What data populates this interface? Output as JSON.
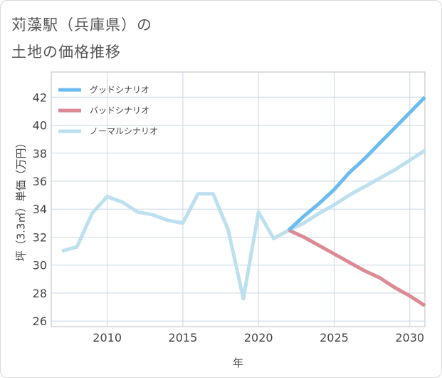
{
  "title": {
    "line1": "苅藻駅（兵庫県）の",
    "line2": "土地の価格推移"
  },
  "chart_data": {
    "type": "line",
    "xlabel": "年",
    "ylabel": "坪（3.3㎡）単価（万円）",
    "xlim": [
      2006.3,
      2031
    ],
    "ylim": [
      25.6,
      43.8
    ],
    "x_ticks": [
      2010,
      2015,
      2020,
      2025,
      2030
    ],
    "y_ticks": [
      26,
      28,
      30,
      32,
      34,
      36,
      38,
      40,
      42
    ],
    "grid": true,
    "legend_position": "top-left",
    "series": [
      {
        "name": "グッドシナリオ",
        "color": "#6cbbef",
        "points": [
          [
            2022,
            32.5
          ],
          [
            2023,
            33.5
          ],
          [
            2024,
            34.4
          ],
          [
            2025,
            35.4
          ],
          [
            2026,
            36.6
          ],
          [
            2027,
            37.6
          ],
          [
            2028,
            38.7
          ],
          [
            2029,
            39.8
          ],
          [
            2030,
            40.9
          ],
          [
            2031,
            42.0
          ]
        ]
      },
      {
        "name": "バッドシナリオ",
        "color": "#dd8a94",
        "points": [
          [
            2022,
            32.5
          ],
          [
            2023,
            32.0
          ],
          [
            2024,
            31.4
          ],
          [
            2025,
            30.8
          ],
          [
            2026,
            30.2
          ],
          [
            2027,
            29.6
          ],
          [
            2028,
            29.1
          ],
          [
            2029,
            28.4
          ],
          [
            2030,
            27.8
          ],
          [
            2031,
            27.1
          ]
        ]
      },
      {
        "name": "ノーマルシナリオ",
        "color": "#bde0ee",
        "points": [
          [
            2007,
            31.0
          ],
          [
            2008,
            31.3
          ],
          [
            2009,
            33.7
          ],
          [
            2010,
            34.9
          ],
          [
            2011,
            34.5
          ],
          [
            2012,
            33.8
          ],
          [
            2013,
            33.6
          ],
          [
            2014,
            33.2
          ],
          [
            2015,
            33.0
          ],
          [
            2016,
            35.1
          ],
          [
            2017,
            35.1
          ],
          [
            2018,
            32.5
          ],
          [
            2019,
            27.6
          ],
          [
            2020,
            33.8
          ],
          [
            2021,
            31.9
          ],
          [
            2022,
            32.5
          ],
          [
            2023,
            33.0
          ],
          [
            2024,
            33.7
          ],
          [
            2025,
            34.3
          ],
          [
            2026,
            35.0
          ],
          [
            2027,
            35.6
          ],
          [
            2028,
            36.2
          ],
          [
            2029,
            36.8
          ],
          [
            2030,
            37.5
          ],
          [
            2031,
            38.2
          ]
        ]
      }
    ]
  }
}
